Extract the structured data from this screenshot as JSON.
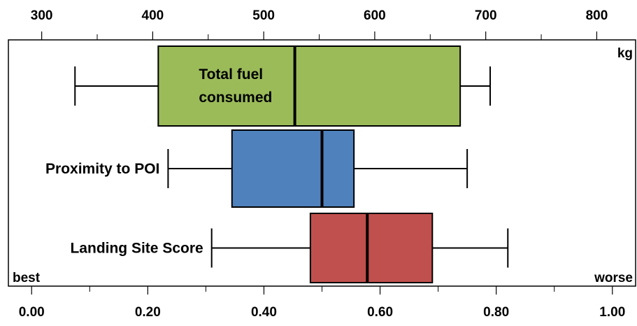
{
  "chart_data": {
    "type": "boxplot",
    "top_axis": {
      "unit_label": "kg",
      "range": [
        270,
        835
      ],
      "ticks": [
        300,
        400,
        500,
        600,
        700,
        800
      ],
      "tick_labels": [
        "300",
        "400",
        "500",
        "600",
        "700",
        "800"
      ]
    },
    "bottom_axis": {
      "range": [
        -0.04,
        1.04
      ],
      "ticks": [
        0,
        0.2,
        0.4,
        0.6,
        0.8,
        1.0
      ],
      "tick_labels": [
        "0.00",
        "0.20",
        "0.40",
        "0.60",
        "0.80",
        "1.00"
      ],
      "left_label": "best",
      "right_label": "worse"
    },
    "series": [
      {
        "name": "Total fuel consumed",
        "label_lines": [
          "Total fuel",
          "consumed"
        ],
        "axis": "top",
        "color": "#9bbb59",
        "min": 330,
        "q1": 405,
        "median": 528,
        "q3": 677,
        "max": 704
      },
      {
        "name": "Proximity to POI",
        "label_lines": [
          "Proximity to POI"
        ],
        "axis": "bottom",
        "color": "#4f81bd",
        "min": 0.235,
        "q1": 0.345,
        "median": 0.5,
        "q3": 0.555,
        "max": 0.75
      },
      {
        "name": "Landing Site Score",
        "label_lines": [
          "Landing Site Score"
        ],
        "axis": "bottom",
        "color": "#c0504d",
        "min": 0.31,
        "q1": 0.48,
        "median": 0.578,
        "q3": 0.69,
        "max": 0.82
      }
    ]
  }
}
